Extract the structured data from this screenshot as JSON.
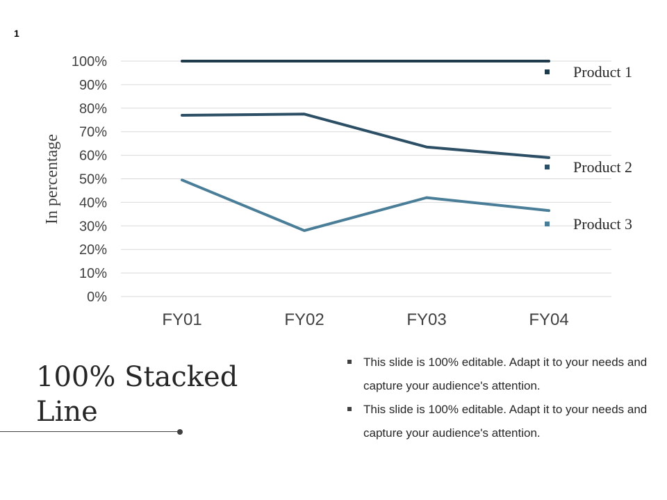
{
  "slide": {
    "number": "1"
  },
  "title": "100% Stacked Line",
  "bullets": [
    "This slide is 100% editable. Adapt it to your needs and capture your audience's attention.",
    "This slide is 100% editable. Adapt it to your needs and capture your audience's attention."
  ],
  "chart_data": {
    "type": "line",
    "title": "",
    "xlabel": "",
    "ylabel": "In percentage",
    "categories": [
      "FY01",
      "FY02",
      "FY03",
      "FY04"
    ],
    "ylim": [
      0,
      100
    ],
    "yticks": [
      "0%",
      "10%",
      "20%",
      "30%",
      "40%",
      "50%",
      "60%",
      "70%",
      "80%",
      "90%",
      "100%"
    ],
    "grid": true,
    "legend_position": "right",
    "series": [
      {
        "name": "Product 1",
        "values": [
          100,
          100,
          100,
          100
        ],
        "color": "#1f3a4b"
      },
      {
        "name": "Product 2",
        "values": [
          77,
          77.5,
          63.5,
          59
        ],
        "color": "#2c4f66"
      },
      {
        "name": "Product 3",
        "values": [
          49.5,
          28,
          42,
          36.5
        ],
        "color": "#4a7d97"
      }
    ]
  }
}
